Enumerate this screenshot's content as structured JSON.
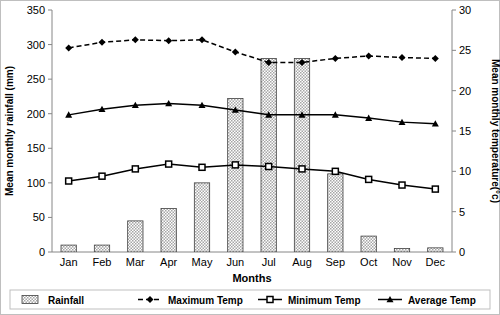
{
  "chart_data": {
    "type": "bar",
    "x_label": "Months",
    "y_label": "Mean monthly rainfall (mm)",
    "y2_label": "Mean monthly temperature(°c)",
    "categories": [
      "Jan",
      "Feb",
      "Mar",
      "Apr",
      "May",
      "Jun",
      "Jul",
      "Aug",
      "Sep",
      "Oct",
      "Nov",
      "Dec"
    ],
    "series": [
      {
        "name": "Rainfall",
        "type": "bar",
        "color": "#a6a6a6",
        "values": [
          10,
          10,
          45,
          63,
          100,
          222,
          280,
          280,
          113,
          23,
          5,
          6
        ]
      },
      {
        "name": "Maximum Temp",
        "type": "line",
        "axis": "y2",
        "color": "#000000",
        "marker": "diamond",
        "line_style": "dashed",
        "values": [
          25.3,
          26.0,
          26.3,
          26.2,
          26.3,
          24.8,
          23.5,
          23.5,
          24.0,
          24.3,
          24.1,
          24.0
        ]
      },
      {
        "name": "Minimum Temp",
        "type": "line",
        "axis": "y2",
        "color": "#000000",
        "marker": "square",
        "line_style": "solid",
        "values": [
          8.8,
          9.4,
          10.3,
          10.9,
          10.5,
          10.8,
          10.6,
          10.3,
          10.0,
          9.0,
          8.3,
          7.8
        ]
      },
      {
        "name": "Average Temp",
        "type": "line",
        "axis": "y2",
        "color": "#000000",
        "marker": "triangle",
        "line_style": "solid",
        "values": [
          17.0,
          17.7,
          18.2,
          18.4,
          18.2,
          17.6,
          17.0,
          17.0,
          17.0,
          16.6,
          16.1,
          15.9
        ]
      }
    ],
    "ylim": [
      0,
      350
    ],
    "yticks": [
      0,
      50,
      100,
      150,
      200,
      250,
      300,
      350
    ],
    "y2lim": [
      0,
      30
    ],
    "y2ticks": [
      0,
      5,
      10,
      15,
      20,
      25,
      30
    ],
    "legend": "bottom",
    "grid": false
  }
}
